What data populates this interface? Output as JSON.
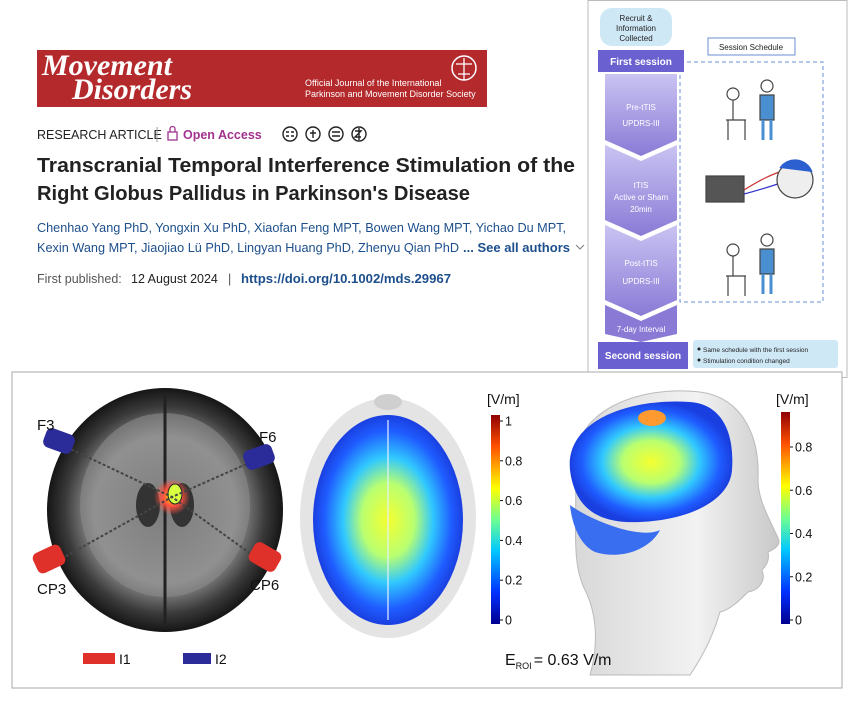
{
  "header": {
    "logo_line1": "Movement",
    "logo_line2": "Disorders",
    "society_line1": "Official Journal of the International",
    "society_line2": "Parkinson and Movement Disorder Society"
  },
  "article": {
    "type": "RESEARCH ARTICLE",
    "access": "Open Access",
    "title_lines": [
      "Transcranial Temporal Interference Stimulation of the",
      "Right Globus Pallidus in Parkinson's Disease"
    ],
    "author_lines": [
      "Chenhao Yang PhD, Yongxin Xu PhD, Xiaofan Feng MPT, Bowen Wang MPT, Yichao Du MPT,",
      "Kexin Wang MPT, Jiaojiao Lü PhD, Lingyan Huang PhD, Zhenyu Qian PhD"
    ],
    "see_all": "... See all authors",
    "published_label": "First published:",
    "published_date": "12 August 2024",
    "separator": "|",
    "doi": "https://doi.org/10.1002/mds.29967"
  },
  "flowchart": {
    "recruit": [
      "Recruit &",
      "Information",
      "Collected"
    ],
    "schedule": "Session Schedule",
    "first_session": "First session",
    "pre": [
      "Pre-tTIS",
      "UPDRS-III"
    ],
    "stim": [
      "tTIS",
      "Active or Sham",
      "20min"
    ],
    "post": [
      "Post-tTIS",
      "UPDRS-III"
    ],
    "interval": "7-day Interval",
    "second_session": "Second session",
    "notes": [
      "Same schedule with the first session",
      "Stimulation condition changed"
    ]
  },
  "figure": {
    "electrodes": [
      "F3",
      "F6",
      "CP3",
      "CP6"
    ],
    "legend": [
      "I1",
      "I2"
    ],
    "colorbars": [
      {
        "unit": "[V/m]",
        "ticks": [
          1,
          0.8,
          0.6,
          0.4,
          0.2,
          0
        ]
      },
      {
        "unit": "[V/m]",
        "ticks": [
          0.8,
          0.6,
          0.4,
          0.2,
          0
        ]
      }
    ],
    "eroi": {
      "symbol": "E",
      "subscript": "ROI",
      "text": "= 0.63 V/m"
    }
  }
}
